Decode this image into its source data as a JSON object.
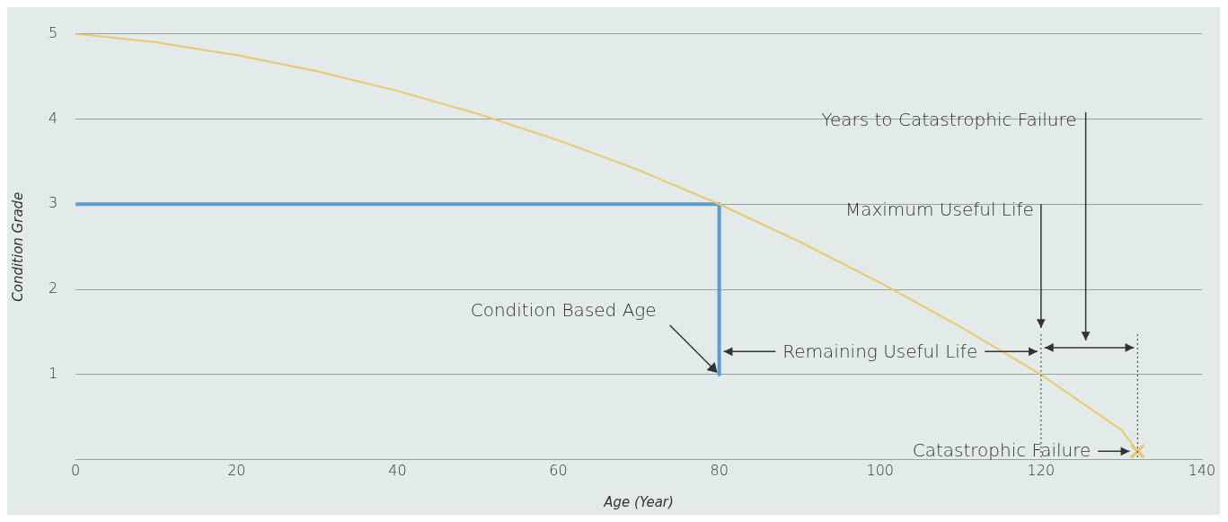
{
  "chart_data": {
    "type": "line",
    "xlabel": "Age (Year)",
    "ylabel": "Condition Grade",
    "xlim": [
      0,
      140
    ],
    "xticks": [
      0,
      20,
      40,
      60,
      80,
      100,
      120,
      140
    ],
    "ylim": [
      0,
      5
    ],
    "yticks": [
      1,
      2,
      3,
      4,
      5
    ],
    "grid": "y",
    "legend": false,
    "series": [
      {
        "color": "#e8c86a",
        "marker": "none",
        "x": [
          0,
          10,
          20,
          30,
          40,
          50,
          60,
          70,
          80,
          90,
          100,
          110,
          120,
          130,
          132
        ],
        "values": [
          5,
          4.9,
          4.75,
          4.56,
          4.33,
          4.06,
          3.75,
          3.4,
          3,
          2.56,
          2.08,
          1.56,
          1,
          0.35,
          0.1
        ]
      },
      {
        "color": "#5b9bd5",
        "marker": "none",
        "x": [
          0,
          80,
          80
        ],
        "values": [
          3,
          3,
          1
        ]
      },
      {
        "type": "scatter",
        "color": "#e8c46a",
        "marker": "cross",
        "x": [
          132
        ],
        "values": [
          0.1
        ]
      }
    ],
    "ref_lines": [
      {
        "axis": "x",
        "value": 120,
        "color": "#333333",
        "line_style": "dotted"
      },
      {
        "axis": "x",
        "value": 132,
        "color": "#333333",
        "line_style": "dotted"
      }
    ],
    "annotations": [
      {
        "text": "Condition Based Age",
        "x": 80,
        "y": 1
      },
      {
        "text": "Remaining Useful Life",
        "x": 120,
        "y": 1.27
      },
      "Maximum Useful Life",
      "Years to Catastrophic Failure",
      {
        "text": "Catastrophic Failure",
        "x": 132,
        "y": 0.1
      }
    ]
  }
}
